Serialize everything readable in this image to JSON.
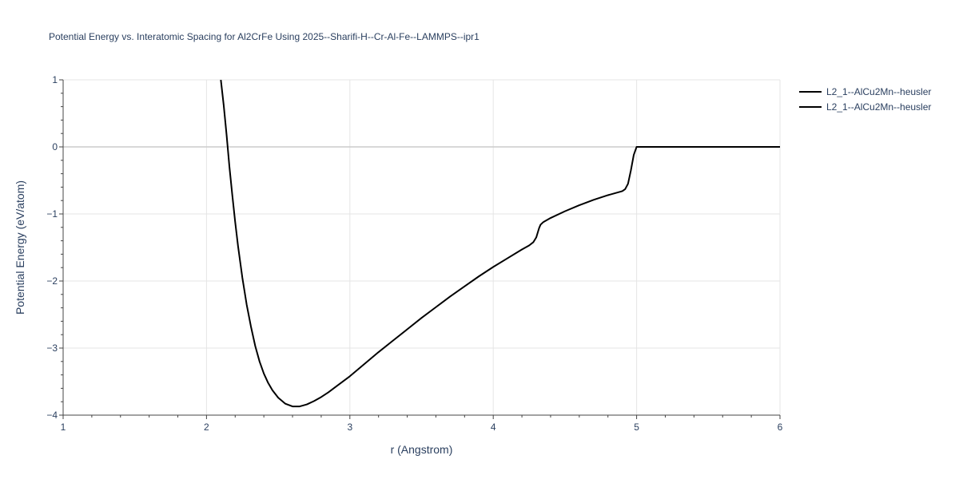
{
  "chart_data": {
    "type": "line",
    "title": "Potential Energy vs. Interatomic Spacing for Al2CrFe Using 2025--Sharifi-H--Cr-Al-Fe--LAMMPS--ipr1",
    "xlabel": "r (Angstrom)",
    "ylabel": "Potential Energy (eV/atom)",
    "xlim": [
      1,
      6
    ],
    "ylim": [
      -4,
      1
    ],
    "xticks": [
      1,
      2,
      3,
      4,
      5,
      6
    ],
    "yticks": [
      1,
      0,
      -1,
      -2,
      -3,
      -4
    ],
    "ytick_labels": [
      "1",
      "0",
      "−1",
      "−2",
      "−3",
      "−4"
    ],
    "grid": true,
    "legend_position": "top-right",
    "series": [
      {
        "name": "L2_1--AlCu2Mn--heusler",
        "color": "#000000",
        "x": [
          2.1,
          2.12,
          2.14,
          2.16,
          2.18,
          2.2,
          2.22,
          2.25,
          2.28,
          2.31,
          2.34,
          2.37,
          2.4,
          2.43,
          2.46,
          2.5,
          2.55,
          2.6,
          2.65,
          2.7,
          2.75,
          2.8,
          2.85,
          2.9,
          3.0,
          3.1,
          3.2,
          3.3,
          3.4,
          3.5,
          3.6,
          3.7,
          3.8,
          3.9,
          4.0,
          4.1,
          4.2,
          4.25,
          4.28,
          4.3,
          4.31,
          4.32,
          4.33,
          4.35,
          4.4,
          4.5,
          4.6,
          4.7,
          4.8,
          4.9,
          4.92,
          4.94,
          4.96,
          4.98,
          5.0,
          5.2,
          5.4,
          5.6,
          5.8,
          6.0
        ],
        "y": [
          1.0,
          0.62,
          0.18,
          -0.3,
          -0.72,
          -1.12,
          -1.48,
          -1.95,
          -2.35,
          -2.68,
          -2.97,
          -3.2,
          -3.38,
          -3.52,
          -3.63,
          -3.74,
          -3.83,
          -3.87,
          -3.87,
          -3.84,
          -3.79,
          -3.73,
          -3.66,
          -3.58,
          -3.42,
          -3.24,
          -3.06,
          -2.89,
          -2.72,
          -2.55,
          -2.39,
          -2.23,
          -2.08,
          -1.93,
          -1.79,
          -1.66,
          -1.53,
          -1.47,
          -1.42,
          -1.35,
          -1.28,
          -1.21,
          -1.16,
          -1.12,
          -1.06,
          -0.96,
          -0.87,
          -0.79,
          -0.72,
          -0.66,
          -0.63,
          -0.55,
          -0.35,
          -0.12,
          0.0,
          0.0,
          0.0,
          0.0,
          0.0,
          0.0
        ]
      },
      {
        "name": "L2_1--AlCu2Mn--heusler",
        "color": "#000000",
        "x": [],
        "y": []
      }
    ]
  }
}
